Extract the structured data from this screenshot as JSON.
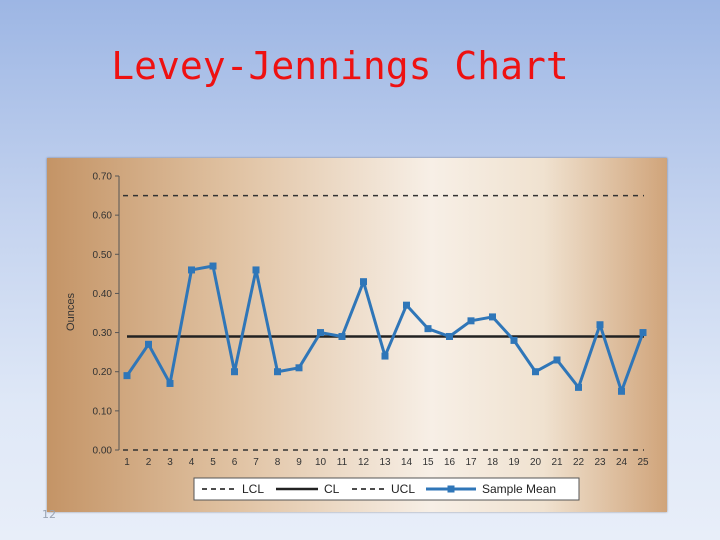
{
  "slide": {
    "title": "Levey-Jennings Chart",
    "page_number": "12"
  },
  "chart_data": {
    "type": "line",
    "title": "",
    "xlabel": "",
    "ylabel": "Ounces",
    "x": [
      1,
      2,
      3,
      4,
      5,
      6,
      7,
      8,
      9,
      10,
      11,
      12,
      13,
      14,
      15,
      16,
      17,
      18,
      19,
      20,
      21,
      22,
      23,
      24,
      25
    ],
    "x_tick_labels": [
      "1",
      "2",
      "3",
      "4",
      "5",
      "6",
      "7",
      "8",
      "9",
      "10",
      "11",
      "12",
      "13",
      "14",
      "15",
      "16",
      "17",
      "18",
      "19",
      "20",
      "21",
      "22",
      "23",
      "24",
      "25"
    ],
    "ylim": [
      0,
      0.7
    ],
    "y_ticks": [
      0.0,
      0.1,
      0.2,
      0.3,
      0.4,
      0.5,
      0.6,
      0.7
    ],
    "y_tick_labels": [
      "0.00",
      "0.10",
      "0.20",
      "0.30",
      "0.40",
      "0.50",
      "0.60",
      "0.70"
    ],
    "grid": false,
    "legend_position": "bottom",
    "series": [
      {
        "name": "Sample Mean",
        "values": [
          0.19,
          0.27,
          0.17,
          0.46,
          0.47,
          0.2,
          0.46,
          0.2,
          0.21,
          0.3,
          0.29,
          0.43,
          0.24,
          0.37,
          0.31,
          0.29,
          0.33,
          0.34,
          0.28,
          0.2,
          0.23,
          0.16,
          0.32,
          0.15,
          0.3
        ],
        "color": "#2f76b8"
      }
    ],
    "control_lines": [
      {
        "name": "LCL",
        "value": 0.0,
        "style": "dashed",
        "color": "#333333"
      },
      {
        "name": "CL",
        "value": 0.29,
        "style": "solid",
        "color": "#222222"
      },
      {
        "name": "UCL",
        "value": 0.65,
        "style": "dashed",
        "color": "#333333"
      }
    ],
    "legend": [
      "LCL",
      "CL",
      "UCL",
      "Sample Mean"
    ]
  }
}
